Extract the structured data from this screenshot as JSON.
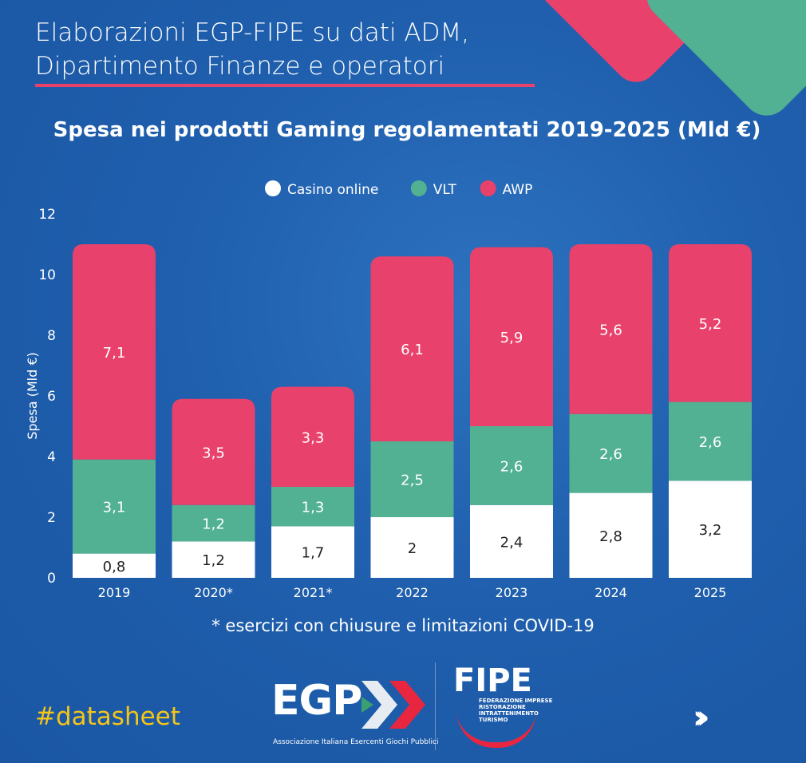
{
  "header": {
    "source_line1": "Elaborazioni EGP-FIPE su dati ADM,",
    "source_line2": "Dipartimento Finanze e operatori"
  },
  "footer": {
    "note": "* esercizi con chiusure e limitazioni COVID-19",
    "hashtag": "#datasheet",
    "egp_logo": "EGP",
    "egp_tagline": "Associazione Italiana  Esercenti Giochi Pubblici",
    "fipe_logo": "FIPE",
    "fipe_lines": [
      "FEDERAZIONE IMPRESE",
      "RISTORAZIONE",
      "INTRATTENIMENTO",
      "TURISMO"
    ],
    "next_icon": "chevrons-right-icon"
  },
  "colors": {
    "background": "#1f5fad",
    "casino": "#ffffff",
    "vlt": "#52b093",
    "awp": "#e8416b"
  },
  "chart_data": {
    "type": "bar",
    "stacked": true,
    "title": "Spesa nei prodotti Gaming regolamentati 2019-2025 (Mld €)",
    "ylabel": "Spesa (Mld €)",
    "xlabel": "",
    "ylim": [
      0,
      12
    ],
    "yticks": [
      "0",
      "2",
      "4",
      "6",
      "8",
      "10",
      "12"
    ],
    "grid": false,
    "legend": "top",
    "categories": [
      "2019",
      "2020*",
      "2021*",
      "2022",
      "2023",
      "2024",
      "2025"
    ],
    "series": [
      {
        "name": "Casino online",
        "color": "#ffffff",
        "values": [
          0.8,
          1.2,
          1.7,
          2,
          2.4,
          2.8,
          3.2
        ],
        "labels": [
          "0,8",
          "1,2",
          "1,7",
          "2",
          "2,4",
          "2,8",
          "3,2"
        ]
      },
      {
        "name": "VLT",
        "color": "#52b093",
        "values": [
          3.1,
          1.2,
          1.3,
          2.5,
          2.6,
          2.6,
          2.6
        ],
        "labels": [
          "3,1",
          "1,2",
          "1,3",
          "2,5",
          "2,6",
          "2,6",
          "2,6"
        ]
      },
      {
        "name": "AWP",
        "color": "#e8416b",
        "values": [
          7.1,
          3.5,
          3.3,
          6.1,
          5.9,
          5.6,
          5.2
        ],
        "labels": [
          "7,1",
          "3,5",
          "3,3",
          "6,1",
          "5,9",
          "5,6",
          "5,2"
        ]
      }
    ]
  }
}
